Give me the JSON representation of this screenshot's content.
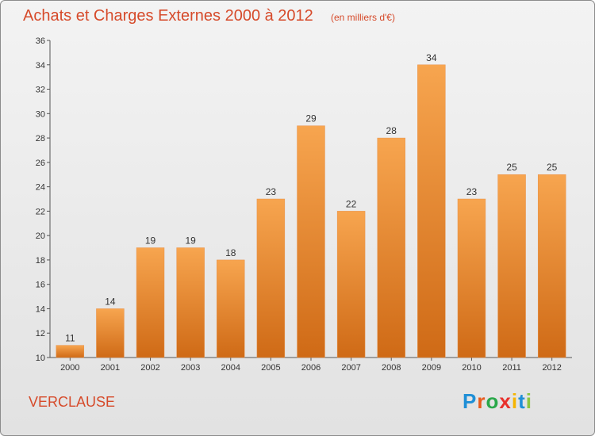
{
  "header": {
    "title": "Achats et Charges Externes 2000 à 2012",
    "unit": "(en milliers d'€)"
  },
  "footer": {
    "commune": "VERCLAUSE",
    "logo_letters": [
      "P",
      "r",
      "o",
      "x",
      "i",
      "t",
      "i"
    ],
    "logo_colors": [
      "#1f8fd6",
      "#e85a1b",
      "#2aa84a",
      "#e8302b",
      "#f5b400",
      "#1f8fd6",
      "#8cc63f"
    ]
  },
  "chart_data": {
    "type": "bar",
    "title": "Achats et Charges Externes 2000 à 2012",
    "subtitle": "(en milliers d'€)",
    "categories": [
      "2000",
      "2001",
      "2002",
      "2003",
      "2004",
      "2005",
      "2006",
      "2007",
      "2008",
      "2009",
      "2010",
      "2011",
      "2012"
    ],
    "values": [
      11,
      14,
      19,
      19,
      18,
      23,
      29,
      22,
      28,
      34,
      23,
      25,
      25
    ],
    "ylim": [
      10,
      36
    ],
    "yticks": [
      10,
      12,
      14,
      16,
      18,
      20,
      22,
      24,
      26,
      28,
      30,
      32,
      34,
      36
    ],
    "grid": false,
    "bar_color_top": "#f7a54f",
    "bar_color_bottom": "#cf6a16"
  }
}
